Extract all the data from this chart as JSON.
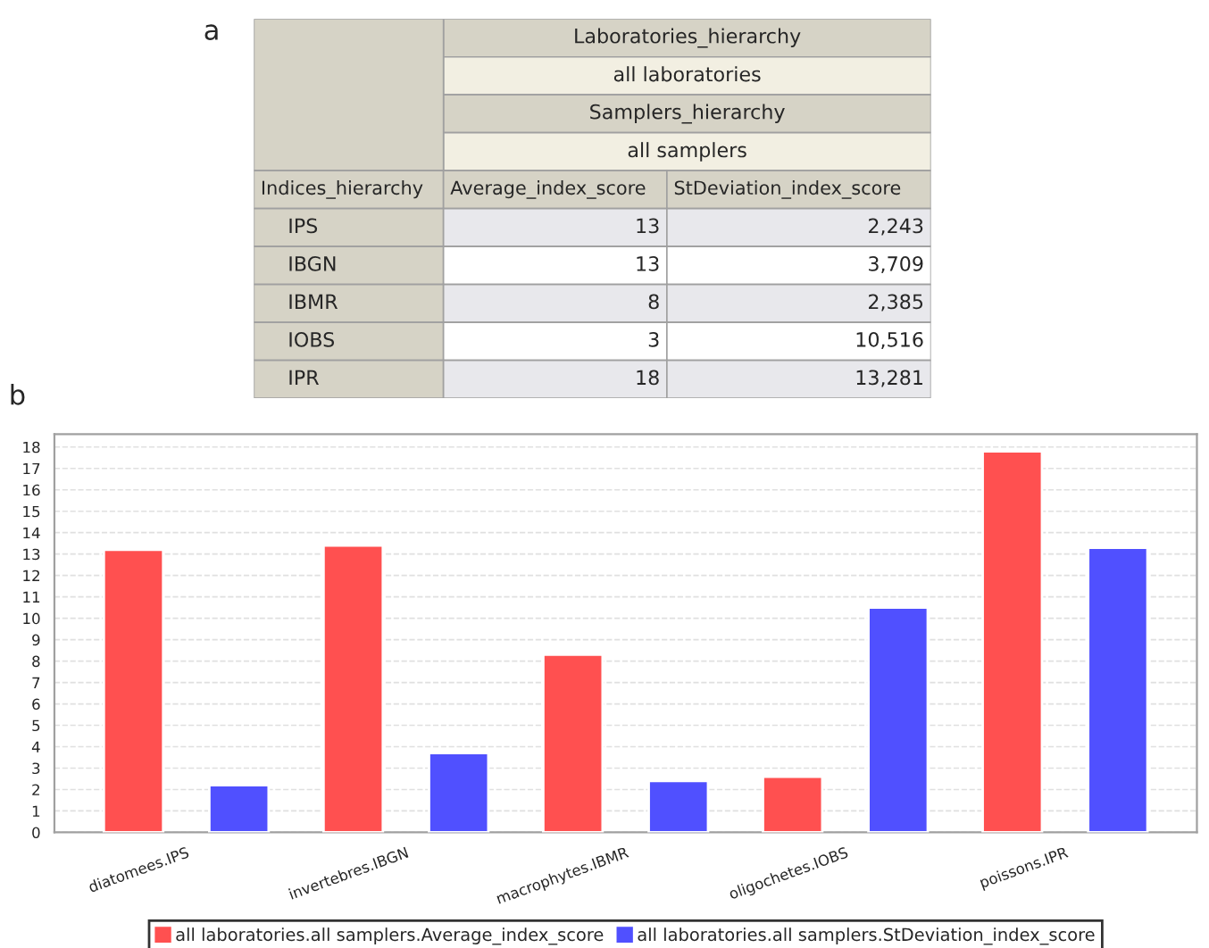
{
  "chart_data": [
    {
      "type": "other",
      "title": "a",
      "annotations": [
        "Laboratories_hierarchy",
        "all laboratories",
        "Samplers_hierarchy",
        "all samplers",
        "Indices_hierarchy",
        "Average_index_score",
        "StDeviation_index_score",
        "IPS",
        "13",
        "2,243",
        "IBGN",
        "13",
        "3,709",
        "IBMR",
        "8",
        "2,385",
        "IOBS",
        "3",
        "10,516",
        "IPR",
        "18",
        "13,281"
      ]
    },
    {
      "type": "bar",
      "title": "b",
      "categories": [
        "diatomees.IPS",
        "invertebres.IBGN",
        "macrophytes.IBMR",
        "oligochetes.IOBS",
        "poissons.IPR"
      ],
      "series": [
        {
          "name": "all laboratories.all samplers.Average_index_score",
          "color": "#ff5050",
          "values": [
            13.2,
            13.4,
            8.3,
            2.6,
            17.8
          ]
        },
        {
          "name": "all laboratories.all samplers.StDeviation_index_score",
          "color": "#5050ff",
          "values": [
            2.2,
            3.7,
            2.4,
            10.5,
            13.3
          ]
        }
      ],
      "ylim": [
        0,
        18.6
      ],
      "yticks": [
        0,
        1,
        2,
        3,
        4,
        5,
        6,
        7,
        8,
        9,
        10,
        11,
        12,
        13,
        14,
        15,
        16,
        17,
        18
      ],
      "grid": "y",
      "legend": "bottom"
    }
  ]
}
